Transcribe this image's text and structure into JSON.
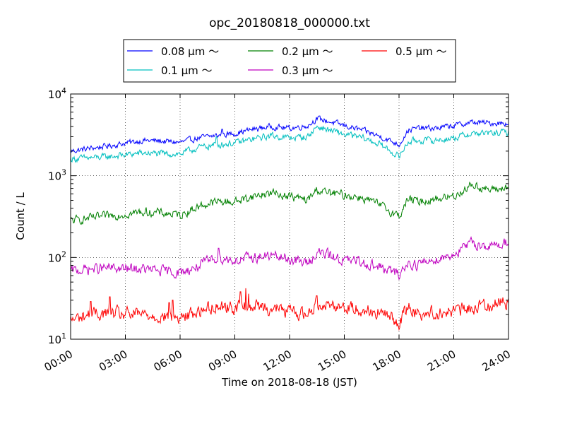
{
  "chart_data": {
    "type": "line",
    "title": "opc_20180818_000000.txt",
    "xlabel": "Time on 2018-08-18 (JST)",
    "ylabel": "Count / L",
    "yscale": "log",
    "ylim": [
      10,
      10000
    ],
    "xlim_hours": [
      0,
      24
    ],
    "grid": true,
    "legend_placement": "top-center",
    "x_ticks": [
      "00:00",
      "03:00",
      "06:00",
      "09:00",
      "12:00",
      "15:00",
      "18:00",
      "21:00",
      "24:00"
    ],
    "y_ticks": [
      {
        "base": "10",
        "exp": "1"
      },
      {
        "base": "10",
        "exp": "2"
      },
      {
        "base": "10",
        "exp": "3"
      },
      {
        "base": "10",
        "exp": "4"
      }
    ],
    "series": [
      {
        "name": "0.08 μm ～",
        "color": "#0000ff",
        "x": [
          0,
          1,
          2,
          3,
          4,
          5,
          6,
          7,
          8,
          9,
          10,
          11,
          12,
          13,
          13.5,
          14,
          15,
          16,
          17,
          18,
          18.5,
          19,
          20,
          21,
          22,
          23,
          24
        ],
        "values": [
          2000,
          2150,
          2300,
          2500,
          2700,
          2650,
          2550,
          2900,
          3100,
          3300,
          3700,
          4000,
          3800,
          4100,
          5000,
          4700,
          4100,
          3600,
          3000,
          2400,
          3600,
          3800,
          3800,
          4100,
          4500,
          4400,
          4400
        ]
      },
      {
        "name": "0.1 μm ～",
        "color": "#00bfbf",
        "x": [
          0,
          1,
          2,
          3,
          4,
          5,
          6,
          7,
          8,
          9,
          10,
          11,
          12,
          13,
          13.5,
          14,
          15,
          16,
          17,
          18,
          18.5,
          19,
          20,
          21,
          22,
          23,
          24
        ],
        "values": [
          1600,
          1650,
          1700,
          1800,
          1900,
          1850,
          1850,
          2200,
          2400,
          2500,
          2800,
          3100,
          2900,
          3000,
          4000,
          3700,
          3200,
          2900,
          2400,
          1700,
          2600,
          2700,
          2700,
          2900,
          3300,
          3300,
          3400
        ]
      },
      {
        "name": "0.2 μm ～",
        "color": "#008000",
        "x": [
          0,
          1,
          2,
          3,
          4,
          5,
          6,
          7,
          8,
          9,
          10,
          11,
          12,
          13,
          13.5,
          14,
          15,
          16,
          17,
          18,
          18.5,
          19,
          20,
          21,
          22,
          23,
          24
        ],
        "values": [
          280,
          300,
          320,
          340,
          360,
          350,
          330,
          420,
          480,
          480,
          560,
          620,
          560,
          500,
          680,
          620,
          580,
          540,
          430,
          320,
          520,
          480,
          520,
          560,
          780,
          660,
          720
        ]
      },
      {
        "name": "0.3 μm ～",
        "color": "#bf00bf",
        "x": [
          0,
          1,
          2,
          3,
          4,
          5,
          6,
          7,
          8,
          9,
          10,
          11,
          12,
          13,
          13.5,
          14,
          15,
          16,
          17,
          18,
          18.5,
          19,
          20,
          21,
          22,
          23,
          24
        ],
        "values": [
          68,
          72,
          74,
          72,
          72,
          68,
          65,
          78,
          100,
          92,
          100,
          105,
          95,
          85,
          115,
          110,
          92,
          88,
          75,
          62,
          85,
          82,
          95,
          110,
          150,
          135,
          155
        ]
      },
      {
        "name": "0.5 μm ～",
        "color": "#ff0000",
        "x": [
          0,
          1,
          2,
          3,
          4,
          5,
          6,
          7,
          8,
          9,
          10,
          11,
          12,
          13,
          13.5,
          14,
          15,
          16,
          17,
          18,
          18.5,
          19,
          20,
          21,
          22,
          23,
          24
        ],
        "values": [
          17,
          20,
          21,
          20,
          20,
          19,
          18,
          22,
          26,
          24,
          26,
          24,
          22,
          20,
          28,
          27,
          25,
          23,
          21,
          16,
          25,
          21,
          21,
          22,
          24,
          27,
          29
        ]
      }
    ],
    "spikes": [
      {
        "series": 4,
        "x": 1.1,
        "value": 29
      },
      {
        "series": 4,
        "x": 2.15,
        "value": 33
      },
      {
        "series": 4,
        "x": 5.4,
        "value": 28
      },
      {
        "series": 4,
        "x": 5.6,
        "value": 30
      },
      {
        "series": 4,
        "x": 9.3,
        "value": 38
      },
      {
        "series": 4,
        "x": 9.6,
        "value": 42
      },
      {
        "series": 4,
        "x": 9.75,
        "value": 36
      },
      {
        "series": 4,
        "x": 13.5,
        "value": 34
      },
      {
        "series": 1,
        "x": 8.0,
        "value": 3000
      },
      {
        "series": 3,
        "x": 8.1,
        "value": 130
      },
      {
        "series": 0,
        "x": 8.3,
        "value": 3700
      }
    ]
  }
}
